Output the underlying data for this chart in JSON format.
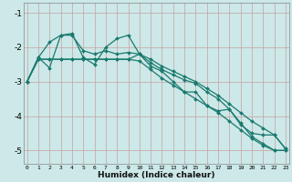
{
  "xlabel": "Humidex (Indice chaleur)",
  "ylabel": "",
  "background_color": "#cce8e8",
  "grid_color": "#b0d4d4",
  "line_color": "#1a7a6e",
  "x_ticks": [
    0,
    1,
    2,
    3,
    4,
    5,
    6,
    7,
    8,
    9,
    10,
    11,
    12,
    13,
    14,
    15,
    16,
    17,
    18,
    19,
    20,
    21,
    22,
    23
  ],
  "y_ticks": [
    -1,
    -2,
    -3,
    -4,
    -5
  ],
  "xlim": [
    -0.3,
    23.3
  ],
  "ylim": [
    -5.4,
    -0.7
  ],
  "series": [
    {
      "x": [
        0,
        1,
        2,
        3,
        4,
        5,
        6,
        7,
        8,
        9,
        10,
        11,
        12,
        13,
        14,
        15,
        16,
        17,
        18,
        19,
        20,
        21,
        22,
        23
      ],
      "y": [
        -3.0,
        -2.3,
        -1.85,
        -1.65,
        -1.65,
        -2.1,
        -2.2,
        -2.1,
        -2.2,
        -2.15,
        -2.2,
        -2.45,
        -2.65,
        -2.8,
        -2.95,
        -3.05,
        -3.3,
        -3.5,
        -3.8,
        -4.2,
        -4.6,
        -4.8,
        -5.0,
        -5.0
      ]
    },
    {
      "x": [
        0,
        1,
        2,
        3,
        4,
        5,
        6,
        7,
        8,
        9,
        10,
        11,
        12,
        13,
        14,
        15,
        16,
        17,
        18,
        19,
        20,
        21,
        22,
        23
      ],
      "y": [
        -3.0,
        -2.3,
        -2.6,
        -1.65,
        -1.6,
        -2.3,
        -2.5,
        -2.0,
        -1.75,
        -1.65,
        -2.2,
        -2.55,
        -2.7,
        -3.0,
        -3.3,
        -3.3,
        -3.7,
        -3.85,
        -3.8,
        -4.25,
        -4.5,
        -4.55,
        -4.55,
        -4.95
      ]
    },
    {
      "x": [
        0,
        1,
        2,
        3,
        4,
        5,
        6,
        7,
        8,
        9,
        10,
        11,
        12,
        13,
        14,
        15,
        16,
        17,
        18,
        19,
        20,
        21,
        22,
        23
      ],
      "y": [
        -3.0,
        -2.35,
        -2.35,
        -2.35,
        -2.35,
        -2.35,
        -2.35,
        -2.35,
        -2.35,
        -2.35,
        -2.4,
        -2.65,
        -2.9,
        -3.1,
        -3.3,
        -3.5,
        -3.7,
        -3.9,
        -4.15,
        -4.4,
        -4.65,
        -4.85,
        -5.0,
        -5.0
      ]
    },
    {
      "x": [
        0,
        1,
        2,
        3,
        4,
        5,
        6,
        7,
        8,
        9,
        10,
        11,
        12,
        13,
        14,
        15,
        16,
        17,
        18,
        19,
        20,
        21,
        22,
        23
      ],
      "y": [
        -3.0,
        -2.35,
        -2.35,
        -2.35,
        -2.35,
        -2.35,
        -2.35,
        -2.35,
        -2.35,
        -2.35,
        -2.2,
        -2.35,
        -2.55,
        -2.7,
        -2.85,
        -3.0,
        -3.2,
        -3.4,
        -3.65,
        -3.9,
        -4.15,
        -4.35,
        -4.55,
        -4.95
      ]
    }
  ],
  "markersize": 2.0,
  "linewidth": 0.9
}
